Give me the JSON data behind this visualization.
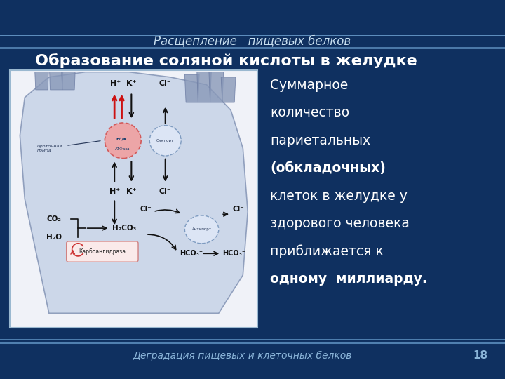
{
  "bg_color": "#0f3060",
  "title_text": "Расщепление   пищевых белков",
  "title_color": "#c8dff0",
  "title_fontsize": 12,
  "title_style": "italic",
  "header_line_color": "#6090c0",
  "heading_text": "Образование соляной кислоты в желудке",
  "heading_color": "#ffffff",
  "heading_fontsize": 16,
  "body_lines": [
    {
      "text": "Суммарное",
      "bold": false
    },
    {
      "text": "количество",
      "bold": false
    },
    {
      "text": "париетальных",
      "bold": false
    },
    {
      "text": "(обкладочных)",
      "bold": true
    },
    {
      "text": "клеток в желудке у",
      "bold": false
    },
    {
      "text": "здорового человека",
      "bold": false
    },
    {
      "text": "приближается к",
      "bold": false
    },
    {
      "text": "одному  миллиарду.",
      "bold": true
    }
  ],
  "body_color": "#ffffff",
  "body_fontsize": 13.5,
  "footer_text": "Деградация пищевых и клеточных белков",
  "footer_page": "18",
  "footer_color": "#8ab4d8",
  "footer_fontsize": 10,
  "footer_line_color": "#5080b0"
}
